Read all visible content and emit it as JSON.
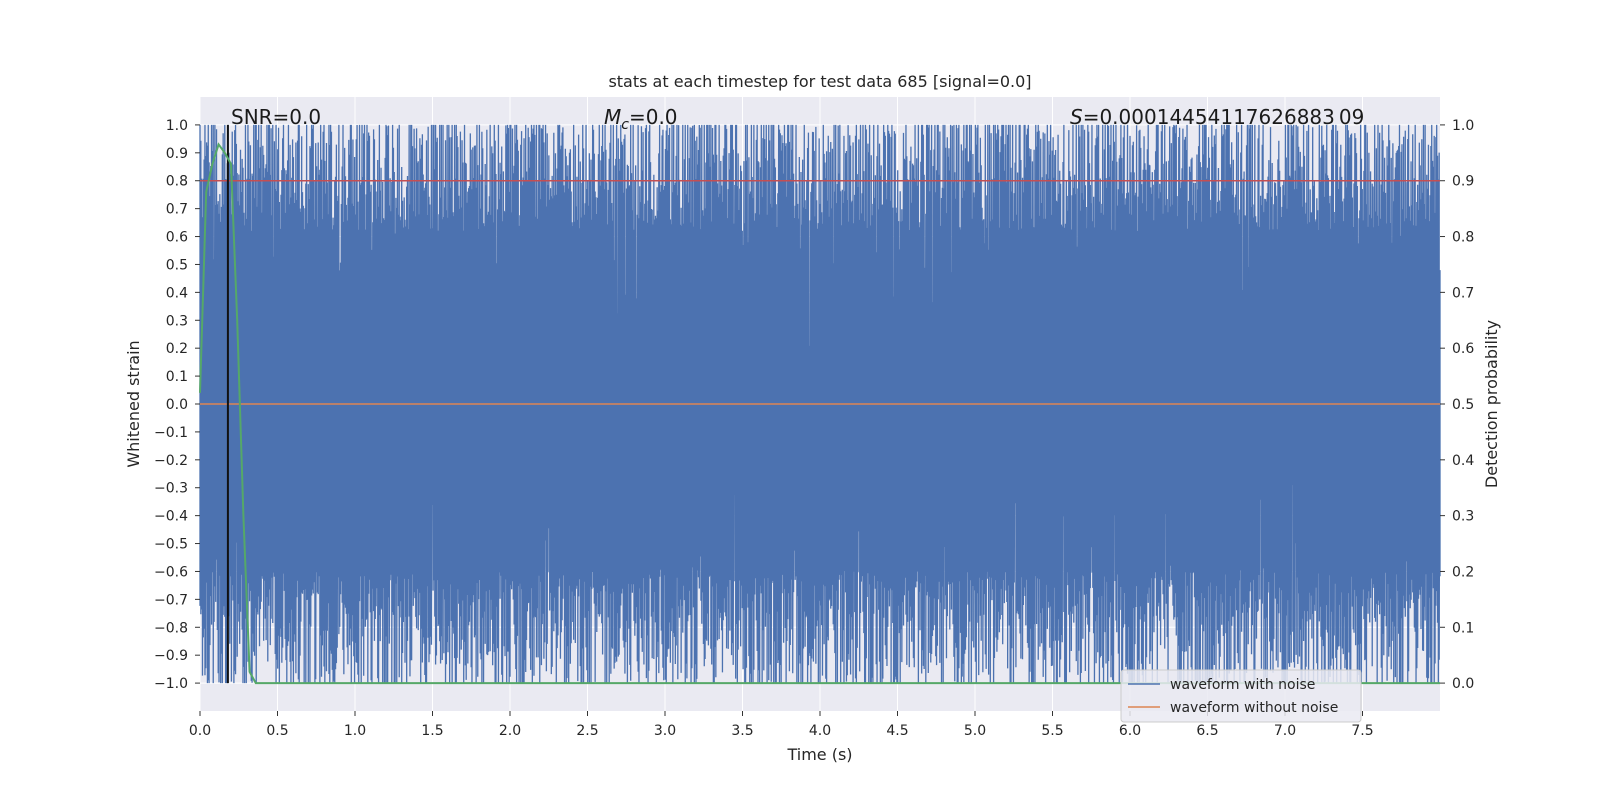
{
  "chart_data": {
    "type": "line",
    "title": "stats at each timestep for test data 685 [signal=0.0]",
    "xlabel": "Time (s)",
    "ylabel": "Whitened strain",
    "y2label": "Detection probability",
    "xlim": [
      0.0,
      8.0
    ],
    "ylim": [
      -1.1,
      1.1
    ],
    "y2lim": [
      -0.05,
      1.05
    ],
    "x_ticks": [
      "0.0",
      "0.5",
      "1.0",
      "1.5",
      "2.0",
      "2.5",
      "3.0",
      "3.5",
      "4.0",
      "4.5",
      "5.0",
      "5.5",
      "6.0",
      "6.5",
      "7.0",
      "7.5"
    ],
    "y_ticks": [
      "1.0",
      "0.9",
      "0.8",
      "0.7",
      "0.6",
      "0.5",
      "0.4",
      "0.3",
      "0.2",
      "0.1",
      "0.0",
      "−0.1",
      "−0.2",
      "−0.3",
      "−0.4",
      "−0.5",
      "−0.6",
      "−0.7",
      "−0.8",
      "−0.9",
      "−1.0"
    ],
    "y2_ticks": [
      "1.0",
      "0.9",
      "0.8",
      "0.7",
      "0.6",
      "0.5",
      "0.4",
      "0.3",
      "0.2",
      "0.1",
      "0.0"
    ],
    "grid": true,
    "annotations": {
      "snr": "SNR=0.0",
      "mc_symbol": "M",
      "mc_sub": "c",
      "mc_value": "=0.0",
      "s_symbol": "S",
      "s_value": "=0.00014454117626883 09"
    },
    "series": [
      {
        "name": "waveform with noise",
        "color": "#4c72b0",
        "description": "whitened noisy strain, spans approx -1.0 to 1.0"
      },
      {
        "name": "waveform without noise",
        "color": "#dd8452",
        "values_constant": 0.0
      },
      {
        "name": "detection probability",
        "color": "#55a868",
        "axis": "right",
        "x": [
          0.0,
          0.04,
          0.08,
          0.12,
          0.16,
          0.2,
          0.24,
          0.28,
          0.32,
          0.36,
          0.4,
          8.0
        ],
        "values": [
          0.52,
          0.88,
          0.93,
          0.965,
          0.95,
          0.93,
          0.65,
          0.3,
          0.02,
          0.0,
          0.0,
          0.0
        ]
      },
      {
        "name": "event marker",
        "color": "#111111",
        "x": 0.18
      },
      {
        "name": "threshold",
        "color": "#c44e52",
        "axis": "right",
        "value": 0.9
      }
    ],
    "legend": {
      "position": "bottom-right",
      "entries": [
        {
          "label": "waveform with noise",
          "color": "#4c72b0"
        },
        {
          "label": "waveform without noise",
          "color": "#dd8452"
        }
      ]
    }
  }
}
